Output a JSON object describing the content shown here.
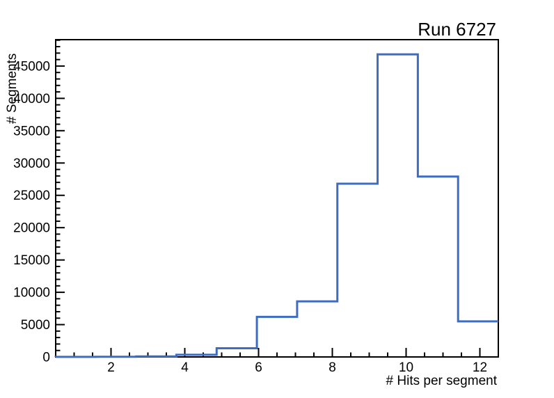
{
  "window": {
    "background": "#ffffff"
  },
  "chart_data": {
    "type": "bar",
    "style": "step-outline-histogram",
    "title": "Run 6727",
    "xlabel": "# Hits per segment",
    "ylabel": "# Segments",
    "xlim": [
      0.5,
      12.5
    ],
    "ylim": [
      0,
      49080
    ],
    "bin_edges": [
      0.5,
      1.5909,
      2.6818,
      3.7727,
      4.8636,
      5.9545,
      7.0455,
      8.1364,
      9.2273,
      10.3182,
      11.4091,
      12.5
    ],
    "values": [
      10,
      30,
      80,
      330,
      1350,
      6200,
      8600,
      26800,
      46800,
      27900,
      5500
    ],
    "x_major_ticks": [
      2,
      4,
      6,
      8,
      10,
      12
    ],
    "x_minor_step": 0.5,
    "y_major_step": 5000,
    "y_major_max": 45000,
    "y_minor_step": 1000,
    "grid": false,
    "legend": "none",
    "line_color": "#3d6cc0",
    "frame_color": "#000000",
    "text_color": "#000000"
  }
}
